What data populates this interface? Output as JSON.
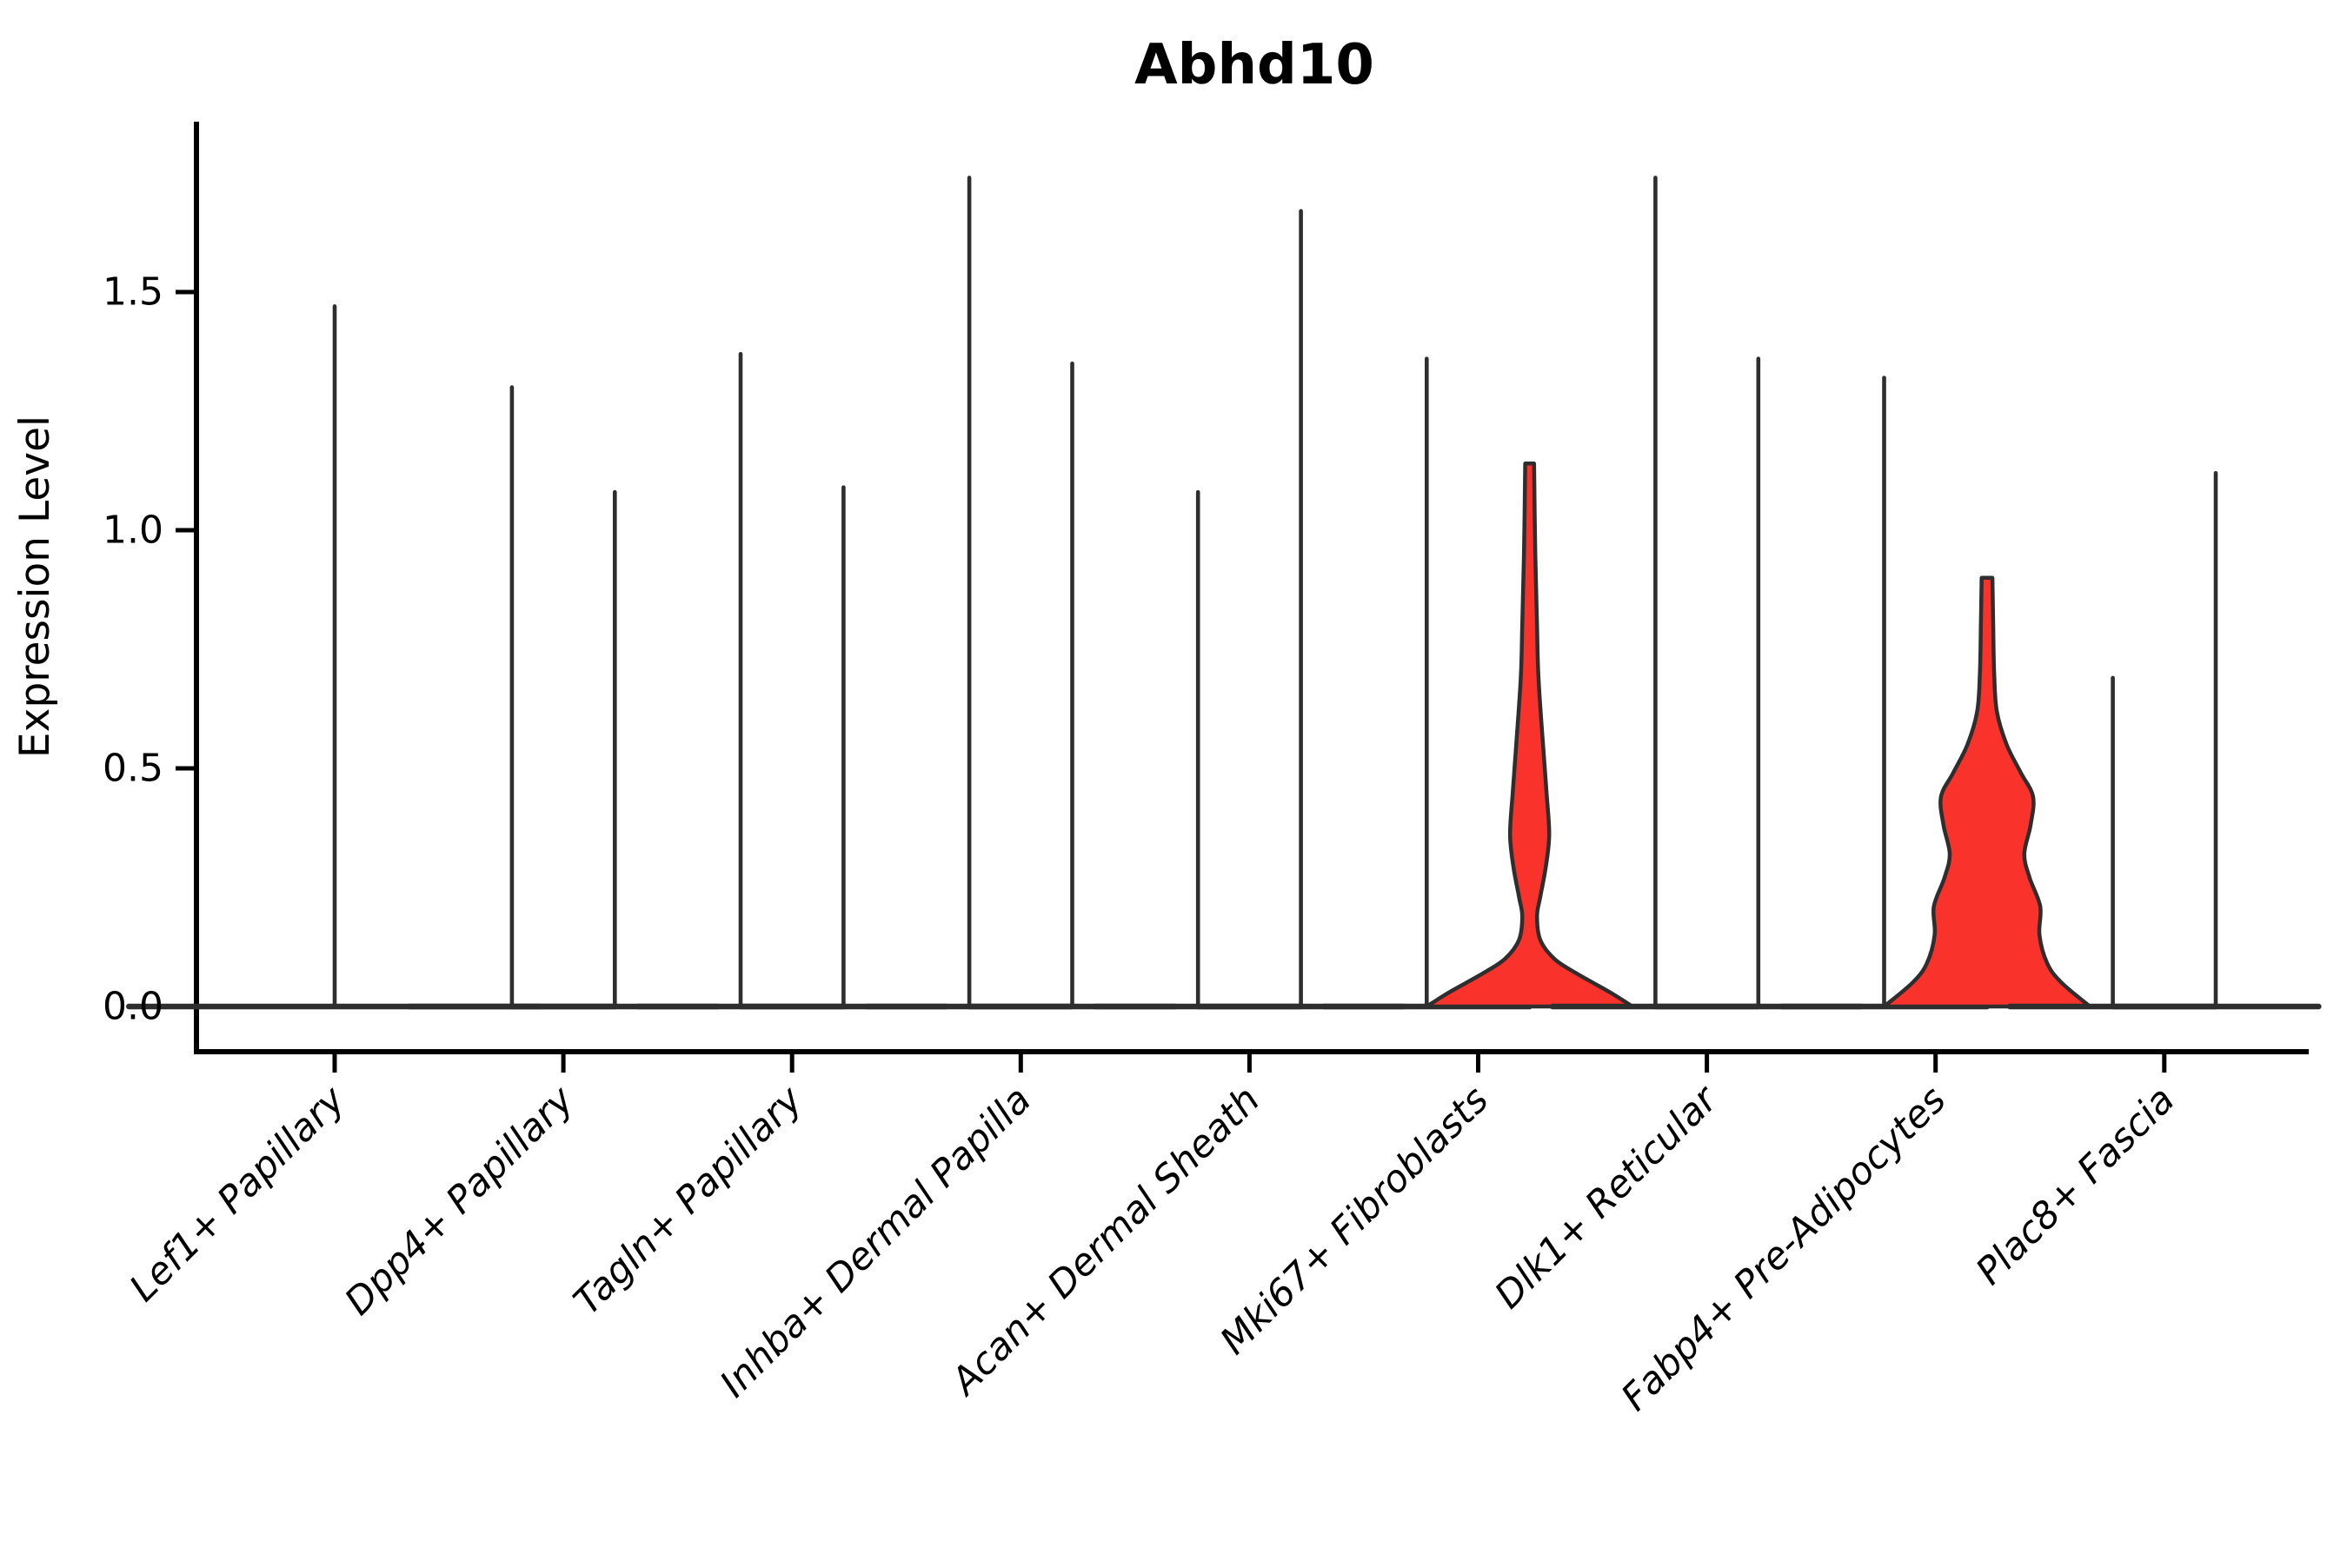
{
  "chart_data": {
    "type": "violin",
    "title": "Abhd10",
    "xlabel": "",
    "ylabel": "Expression Level",
    "ylim": [
      -0.06,
      1.86
    ],
    "yticks": [
      {
        "value": 0.0,
        "label": "0.0"
      },
      {
        "value": 0.5,
        "label": "0.5"
      },
      {
        "value": 1.0,
        "label": "1.0"
      },
      {
        "value": 1.5,
        "label": "1.5"
      }
    ],
    "grid": "off",
    "legend": "none",
    "colors": {
      "highlight_fill": "#F9332C",
      "plain_fill": "#FFFFFF",
      "outline": "#2E2E2E",
      "axis": "#000000"
    },
    "description": "Violin plot of Abhd10 expression per fibroblast cluster; most violins collapse to a thin spike (max expression) over a flat base at 0; the Mki67+ Fibroblasts and Fabp4+ Pre-Adipocytes right-hand violins are red with visible density bulges.",
    "categories": [
      {
        "label": "Lef1+ Papillary",
        "violins": [
          {
            "offset": 0,
            "width": 0.9,
            "max": 1.47,
            "fill": "plain"
          }
        ]
      },
      {
        "label": "Dpp4+ Papillary",
        "violins": [
          {
            "offset": -0.225,
            "width": 0.45,
            "max": 1.3,
            "fill": "plain"
          },
          {
            "offset": 0.225,
            "width": 0.45,
            "max": 1.08,
            "fill": "plain"
          }
        ]
      },
      {
        "label": "Tagln+ Papillary",
        "violins": [
          {
            "offset": -0.225,
            "width": 0.45,
            "max": 1.37,
            "fill": "plain"
          },
          {
            "offset": 0.225,
            "width": 0.45,
            "max": 1.09,
            "fill": "plain"
          }
        ]
      },
      {
        "label": "Inhba+ Dermal Papilla",
        "violins": [
          {
            "offset": -0.225,
            "width": 0.45,
            "max": 1.74,
            "fill": "plain"
          },
          {
            "offset": 0.225,
            "width": 0.45,
            "max": 1.35,
            "fill": "plain"
          }
        ]
      },
      {
        "label": "Acan+ Dermal Sheath",
        "violins": [
          {
            "offset": -0.225,
            "width": 0.45,
            "max": 1.08,
            "fill": "plain"
          },
          {
            "offset": 0.225,
            "width": 0.45,
            "max": 1.67,
            "fill": "plain"
          }
        ]
      },
      {
        "label": "Mki67+ Fibroblasts",
        "violins": [
          {
            "offset": -0.225,
            "width": 0.45,
            "max": 1.36,
            "fill": "plain"
          },
          {
            "offset": 0.225,
            "width": 0.45,
            "max": 1.14,
            "fill": "highlight",
            "profile": [
              [
                1.14,
                0.043
              ],
              [
                0.95,
                0.055
              ],
              [
                0.8,
                0.072
              ],
              [
                0.69,
                0.086
              ],
              [
                0.55,
                0.13
              ],
              [
                0.45,
                0.164
              ],
              [
                0.36,
                0.19
              ],
              [
                0.29,
                0.155
              ],
              [
                0.23,
                0.103
              ],
              [
                0.19,
                0.072
              ],
              [
                0.14,
                0.103
              ],
              [
                0.1,
                0.24
              ],
              [
                0.07,
                0.45
              ],
              [
                0.03,
                0.78
              ],
              [
                0.0,
                1.0
              ]
            ]
          }
        ]
      },
      {
        "label": "Dlk1+ Reticular",
        "violins": [
          {
            "offset": -0.225,
            "width": 0.45,
            "max": 1.74,
            "fill": "plain"
          },
          {
            "offset": 0.225,
            "width": 0.45,
            "max": 1.36,
            "fill": "plain"
          }
        ]
      },
      {
        "label": "Fabp4+ Pre-Adipocytes",
        "violins": [
          {
            "offset": -0.225,
            "width": 0.45,
            "max": 1.32,
            "fill": "plain"
          },
          {
            "offset": 0.225,
            "width": 0.45,
            "max": 0.9,
            "fill": "highlight",
            "profile": [
              [
                0.9,
                0.052
              ],
              [
                0.8,
                0.06
              ],
              [
                0.7,
                0.069
              ],
              [
                0.62,
                0.095
              ],
              [
                0.55,
                0.19
              ],
              [
                0.49,
                0.33
              ],
              [
                0.44,
                0.448
              ],
              [
                0.38,
                0.422
              ],
              [
                0.32,
                0.362
              ],
              [
                0.27,
                0.414
              ],
              [
                0.21,
                0.517
              ],
              [
                0.15,
                0.509
              ],
              [
                0.09,
                0.586
              ],
              [
                0.05,
                0.724
              ],
              [
                0.0,
                1.0
              ]
            ]
          }
        ]
      },
      {
        "label": "Plac8+ Fascia",
        "violins": [
          {
            "offset": -0.225,
            "width": 0.45,
            "max": 0.69,
            "fill": "plain"
          },
          {
            "offset": 0.225,
            "width": 0.45,
            "max": 1.12,
            "fill": "plain"
          }
        ]
      }
    ]
  }
}
